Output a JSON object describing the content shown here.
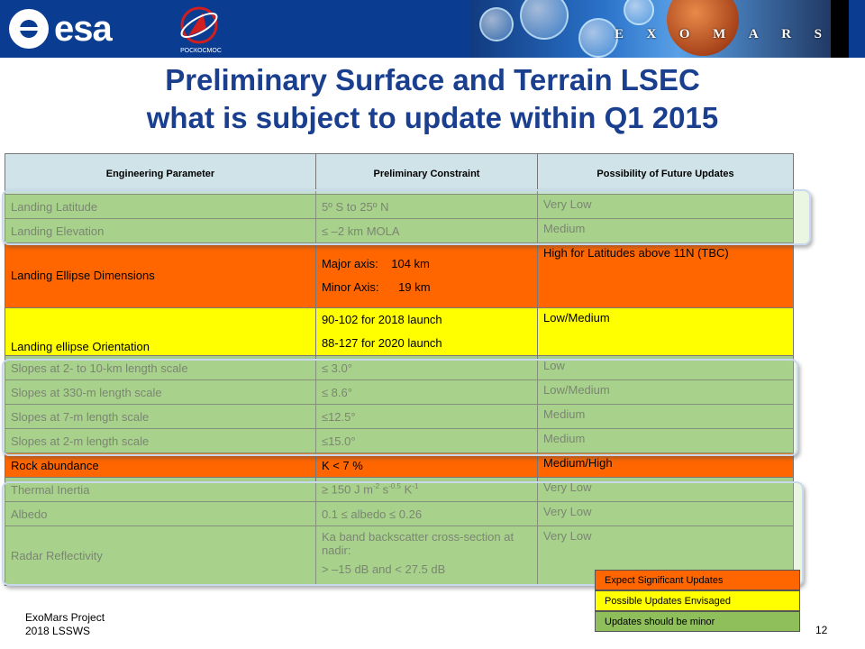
{
  "header": {
    "esa_logo_text": "esa",
    "roscosmos_caption": "РОСКОСМОС",
    "exomars_letters": [
      "E",
      "X",
      "O",
      "M",
      "A",
      "R",
      "S"
    ]
  },
  "title_line1": "Preliminary Surface and Terrain LSEC",
  "title_line2": "what is subject to update within Q1 2015",
  "table": {
    "headers": [
      "Engineering Parameter",
      "Preliminary Constraint",
      "Possibility of Future Updates"
    ],
    "rows": [
      {
        "parameter": "Landing Latitude",
        "constraint": "5º S to 25º N",
        "update": "Very Low",
        "level": "minor"
      },
      {
        "parameter": "Landing Elevation",
        "constraint": "≤ –2 km MOLA",
        "update": "Medium",
        "level": "minor"
      },
      {
        "parameter": "Landing Ellipse Dimensions",
        "constraint_lines": [
          "Major axis:    104 km",
          "Minor Axis:      19 km"
        ],
        "update": "High for Latitudes above 11N (TBC)",
        "level": "significant"
      },
      {
        "parameter": "Landing ellipse Orientation",
        "constraint_lines": [
          "90-102 for 2018 launch",
          "88-127 for 2020 launch"
        ],
        "update": "Low/Medium",
        "level": "possible"
      },
      {
        "parameter": "Slopes at 2- to 10-km length scale",
        "constraint": "≤ 3.0°",
        "update": "Low",
        "level": "minor"
      },
      {
        "parameter": "Slopes at 330-m length scale",
        "constraint": "≤ 8.6°",
        "update": "Low/Medium",
        "level": "minor"
      },
      {
        "parameter": "Slopes at 7-m length scale",
        "constraint": "≤12.5°",
        "update": "Medium",
        "level": "minor"
      },
      {
        "parameter": "Slopes at 2-m length scale",
        "constraint": "≤15.0°",
        "update": "Medium",
        "level": "minor"
      },
      {
        "parameter": "Rock abundance",
        "constraint": "K < 7 %",
        "update": "Medium/High",
        "level": "significant"
      },
      {
        "parameter": "Thermal Inertia",
        "constraint_prefix": "≥ 150 J m",
        "constraint_sup1": "-2",
        "constraint_mid": " s",
        "constraint_sup2": "-0.5",
        "constraint_mid2": " K",
        "constraint_sup3": "-1",
        "update": "Very Low",
        "level": "minor"
      },
      {
        "parameter": "Albedo",
        "constraint": "0.1 ≤ albedo ≤ 0.26",
        "update": "Very Low",
        "level": "minor"
      },
      {
        "parameter": "Radar Reflectivity",
        "constraint_lines": [
          "Ka band backscatter cross-section at nadir:",
          "> –15 dB and < 27.5 dB"
        ],
        "update": "Very Low",
        "level": "minor"
      }
    ]
  },
  "legend": {
    "items": [
      {
        "label": "Expect Significant Updates",
        "color": "#ff6600"
      },
      {
        "label": "Possible Updates Envisaged",
        "color": "#ffff00"
      },
      {
        "label": "Updates should be minor",
        "color": "#8fbf5a"
      }
    ]
  },
  "footer": {
    "line1": "ExoMars Project",
    "line2": "2018 LSSWS",
    "page_number": "12"
  },
  "colors": {
    "header_blue": "#0a3d91",
    "title_blue": "#1a3f8f",
    "significant": "#ff6600",
    "possible": "#ffff00",
    "minor": "#a7d08c"
  }
}
